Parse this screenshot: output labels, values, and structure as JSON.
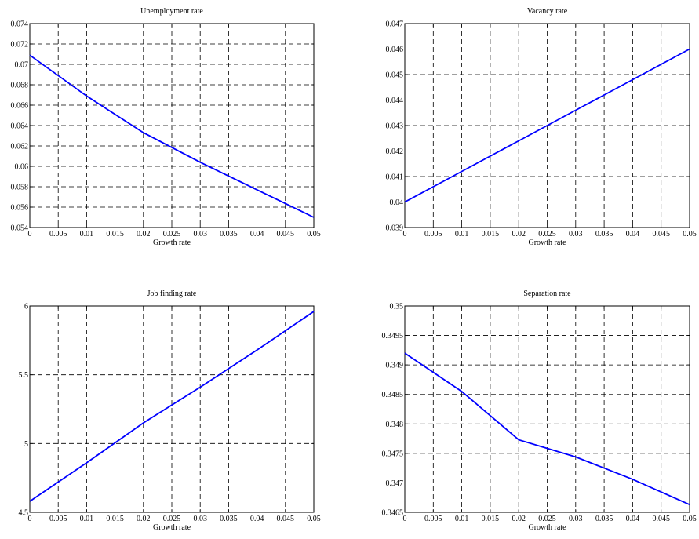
{
  "chart_data": [
    {
      "type": "line",
      "title": "Unemployment rate",
      "xlabel": "Growth rate",
      "ylabel": "",
      "xlim": [
        0,
        0.05
      ],
      "ylim": [
        0.054,
        0.074
      ],
      "xticks": [
        "0",
        "0.005",
        "0.01",
        "0.015",
        "0.02",
        "0.025",
        "0.03",
        "0.035",
        "0.04",
        "0.045",
        "0.05"
      ],
      "yticks": [
        "0.054",
        "0.056",
        "0.058",
        "0.06",
        "0.062",
        "0.064",
        "0.066",
        "0.068",
        "0.07",
        "0.072",
        "0.074"
      ],
      "grid": true,
      "series": [
        {
          "color": "#0000ff",
          "x": [
            0,
            0.01,
            0.02,
            0.03,
            0.04,
            0.05
          ],
          "y": [
            0.0709,
            0.0669,
            0.0633,
            0.0604,
            0.0577,
            0.055
          ]
        }
      ]
    },
    {
      "type": "line",
      "title": "Vacancy rate",
      "xlabel": "Growth rate",
      "ylabel": "",
      "xlim": [
        0,
        0.05
      ],
      "ylim": [
        0.039,
        0.047
      ],
      "xticks": [
        "0",
        "0.005",
        "0.01",
        "0.015",
        "0.02",
        "0.025",
        "0.03",
        "0.035",
        "0.04",
        "0.045",
        "0.05"
      ],
      "yticks": [
        "0.039",
        "0.04",
        "0.041",
        "0.042",
        "0.043",
        "0.044",
        "0.045",
        "0.046",
        "0.047"
      ],
      "grid": true,
      "series": [
        {
          "color": "#0000ff",
          "x": [
            0,
            0.01,
            0.02,
            0.03,
            0.04,
            0.05
          ],
          "y": [
            0.04,
            0.0412,
            0.0424,
            0.0436,
            0.0448,
            0.046
          ]
        }
      ]
    },
    {
      "type": "line",
      "title": "Job finding rate",
      "xlabel": "Growth rate",
      "ylabel": "",
      "xlim": [
        0,
        0.05
      ],
      "ylim": [
        4.5,
        6
      ],
      "xticks": [
        "0",
        "0.005",
        "0.01",
        "0.015",
        "0.02",
        "0.025",
        "0.03",
        "0.035",
        "0.04",
        "0.045",
        "0.05"
      ],
      "yticks": [
        "4.5",
        "5",
        "5.5",
        "6"
      ],
      "grid": true,
      "series": [
        {
          "color": "#0000ff",
          "x": [
            0,
            0.01,
            0.02,
            0.03,
            0.04,
            0.05
          ],
          "y": [
            4.58,
            4.86,
            5.15,
            5.41,
            5.68,
            5.96
          ]
        }
      ]
    },
    {
      "type": "line",
      "title": "Separation rate",
      "xlabel": "Growth rate",
      "ylabel": "",
      "xlim": [
        0,
        0.05
      ],
      "ylim": [
        0.3465,
        0.35
      ],
      "xticks": [
        "0",
        "0.005",
        "0.01",
        "0.015",
        "0.02",
        "0.025",
        "0.03",
        "0.035",
        "0.04",
        "0.045",
        "0.05"
      ],
      "yticks": [
        "0.3465",
        "0.347",
        "0.3475",
        "0.348",
        "0.3485",
        "0.349",
        "0.3495",
        "0.35"
      ],
      "grid": true,
      "series": [
        {
          "color": "#0000ff",
          "x": [
            0,
            0.01,
            0.02,
            0.03,
            0.04,
            0.05
          ],
          "y": [
            0.3492,
            0.34855,
            0.34773,
            0.34744,
            0.34706,
            0.34663
          ]
        }
      ]
    }
  ]
}
